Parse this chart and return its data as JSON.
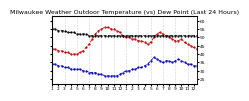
{
  "title": "Milwaukee Weather Outdoor Temperature (vs) Dew Point (Last 24 Hours)",
  "title_fontsize": 4.5,
  "background_color": "#ffffff",
  "grid_color": "#aaaaaa",
  "x_tick_fontsize": 3.2,
  "n_points": 48,
  "temp_color": "#cc0000",
  "dew_color": "#0000cc",
  "indoor_color": "#000000",
  "temp_values": [
    43,
    43,
    42,
    42,
    41,
    41,
    40,
    40,
    40,
    41,
    42,
    44,
    46,
    49,
    52,
    54,
    55,
    56,
    56,
    55,
    55,
    54,
    53,
    51,
    50,
    50,
    49,
    49,
    48,
    48,
    47,
    46,
    47,
    50,
    52,
    53,
    52,
    51,
    50,
    49,
    48,
    48,
    49,
    47,
    46,
    45,
    44,
    43
  ],
  "dew_values": [
    34,
    34,
    33,
    33,
    32,
    32,
    31,
    31,
    31,
    31,
    30,
    30,
    29,
    29,
    29,
    28,
    28,
    27,
    27,
    27,
    27,
    27,
    28,
    29,
    30,
    30,
    31,
    31,
    32,
    32,
    33,
    34,
    36,
    38,
    37,
    36,
    35,
    36,
    36,
    35,
    36,
    37,
    36,
    35,
    34,
    34,
    33,
    33
  ],
  "indoor_values": [
    55,
    55,
    54,
    54,
    54,
    53,
    53,
    53,
    52,
    52,
    52,
    52,
    51,
    51,
    51,
    51,
    51,
    51,
    51,
    51,
    51,
    51,
    51,
    51,
    51,
    51,
    51,
    51,
    51,
    51,
    51,
    51,
    51,
    51,
    51,
    51,
    51,
    51,
    51,
    51,
    51,
    51,
    51,
    51,
    51,
    51,
    51,
    51
  ],
  "ylim": [
    22,
    63
  ],
  "y_ticks": [
    25,
    30,
    35,
    40,
    45,
    50,
    55,
    60
  ],
  "y_tick_fontsize": 3.2,
  "x_tick_positions": [
    0,
    2,
    4,
    6,
    8,
    10,
    12,
    14,
    16,
    18,
    20,
    22,
    24,
    26,
    28,
    30,
    32,
    34,
    36,
    38,
    40,
    42,
    44,
    46
  ],
  "x_tick_labels": [
    "1",
    "2",
    "3",
    "4",
    "5",
    "6",
    "7",
    "8",
    "9",
    "10",
    "11",
    "12",
    "1",
    "2",
    "3",
    "4",
    "5",
    "6",
    "7",
    "8",
    "9",
    "10",
    "11",
    "12"
  ],
  "vline_positions": [
    0,
    4,
    8,
    12,
    16,
    20,
    24,
    28,
    32,
    36,
    40,
    44,
    48
  ],
  "marker_size": 1.2,
  "line_width": 0.6
}
